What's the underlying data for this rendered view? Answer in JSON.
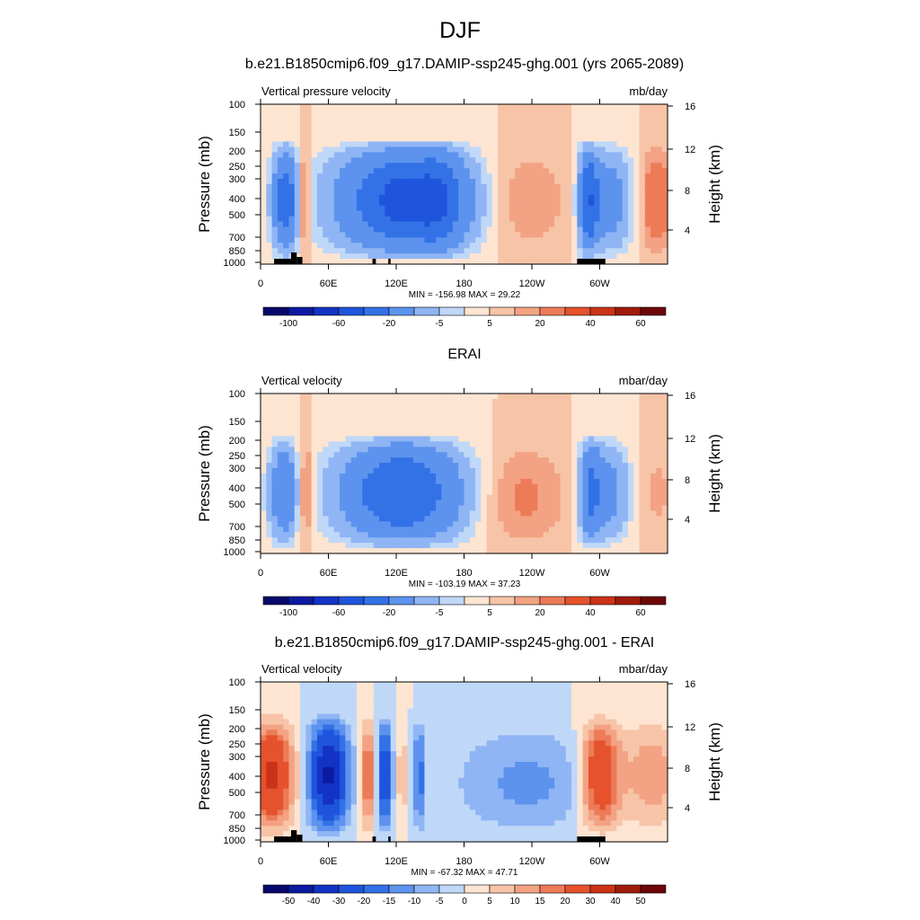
{
  "page_title": "DJF",
  "panels": [
    {
      "title": "b.e21.B1850cmip6.f09_g17.DAMIP-ssp245-ghg.001 (yrs 2065-2089)",
      "left_label": "Vertical pressure velocity",
      "right_label": "mb/day",
      "stats": "MIN = -156.98  MAX =  29.22",
      "colorbar_labels": [
        "-100",
        "-60",
        "-20",
        "-5",
        "5",
        "20",
        "40",
        "60"
      ]
    },
    {
      "title": "ERAI",
      "left_label": "Vertical velocity",
      "right_label": "mbar/day",
      "stats": "MIN = -103.19  MAX =  37.23",
      "colorbar_labels": [
        "-100",
        "-60",
        "-20",
        "-5",
        "5",
        "20",
        "40",
        "60"
      ]
    },
    {
      "title": "b.e21.B1850cmip6.f09_g17.DAMIP-ssp245-ghg.001 - ERAI",
      "left_label": "Vertical velocity",
      "right_label": "mbar/day",
      "stats": "MIN = -67.32  MAX =  47.71",
      "colorbar_labels": [
        "-50",
        "-40",
        "-30",
        "-20",
        "-15",
        "-10",
        "-5",
        "0",
        "5",
        "10",
        "15",
        "20",
        "30",
        "40",
        "50"
      ]
    }
  ],
  "chart_data": [
    {
      "type": "heatmap",
      "title": "b.e21.B1850cmip6.f09_g17.DAMIP-ssp245-ghg.001 (yrs 2065-2089)",
      "variable": "Vertical pressure velocity",
      "units": "mb/day",
      "xlabel": "",
      "ylabel": "Pressure (mb)",
      "y2label": "Height (km)",
      "x_ticks": [
        "0",
        "60E",
        "120E",
        "180",
        "120W",
        "60W"
      ],
      "y_ticks": [
        "100",
        "150",
        "200",
        "250",
        "300",
        "400",
        "500",
        "700",
        "850",
        "1000"
      ],
      "y2_ticks": [
        "4",
        "8",
        "12",
        "16"
      ],
      "colorbar_labels": [
        "-100",
        "-60",
        "-20",
        "-5",
        "5",
        "20",
        "40",
        "60"
      ],
      "min": -156.98,
      "max": 29.22
    },
    {
      "type": "heatmap",
      "title": "ERAI",
      "variable": "Vertical velocity",
      "units": "mbar/day",
      "xlabel": "",
      "ylabel": "Pressure (mb)",
      "y2label": "Height (km)",
      "x_ticks": [
        "0",
        "60E",
        "120E",
        "180",
        "120W",
        "60W"
      ],
      "y_ticks": [
        "100",
        "150",
        "200",
        "250",
        "300",
        "400",
        "500",
        "700",
        "850",
        "1000"
      ],
      "y2_ticks": [
        "4",
        "8",
        "12",
        "16"
      ],
      "colorbar_labels": [
        "-100",
        "-60",
        "-20",
        "-5",
        "5",
        "20",
        "40",
        "60"
      ],
      "min": -103.19,
      "max": 37.23
    },
    {
      "type": "heatmap",
      "title": "b.e21.B1850cmip6.f09_g17.DAMIP-ssp245-ghg.001 - ERAI",
      "variable": "Vertical velocity",
      "units": "mbar/day",
      "xlabel": "",
      "ylabel": "Pressure (mb)",
      "y2label": "Height (km)",
      "x_ticks": [
        "0",
        "60E",
        "120E",
        "180",
        "120W",
        "60W"
      ],
      "y_ticks": [
        "100",
        "150",
        "200",
        "250",
        "300",
        "400",
        "500",
        "700",
        "850",
        "1000"
      ],
      "y2_ticks": [
        "4",
        "8",
        "12",
        "16"
      ],
      "colorbar_labels": [
        "-50",
        "-40",
        "-30",
        "-20",
        "-15",
        "-10",
        "-5",
        "0",
        "5",
        "10",
        "15",
        "20",
        "30",
        "40",
        "50"
      ],
      "min": -67.32,
      "max": 47.71
    }
  ],
  "colors": {
    "colorbar16": [
      "#08086b",
      "#0c1aa0",
      "#1233c4",
      "#1f55dc",
      "#3272e6",
      "#5d93ee",
      "#8fb5f4",
      "#c0d8f8",
      "#fde5d2",
      "#f7c4a8",
      "#f3a283",
      "#ed7b57",
      "#e5522d",
      "#cb3318",
      "#a01b0c",
      "#6e0707"
    ]
  }
}
